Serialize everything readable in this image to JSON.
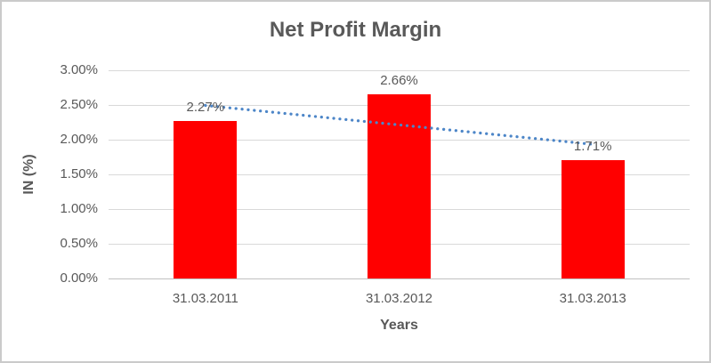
{
  "chart_data": {
    "type": "bar",
    "title": "Net Profit Margin",
    "xlabel": "Years",
    "ylabel": "IN (%)",
    "categories": [
      "31.03.2011",
      "31.03.2012",
      "31.03.2013"
    ],
    "values": [
      2.27,
      2.66,
      1.71
    ],
    "value_labels": [
      "2.27%",
      "2.66%",
      "1.71%"
    ],
    "ylim": [
      0,
      3
    ],
    "yticks": [
      {
        "value": 0.0,
        "label": "0.00%"
      },
      {
        "value": 0.5,
        "label": "0.50%"
      },
      {
        "value": 1.0,
        "label": "1.00%"
      },
      {
        "value": 1.5,
        "label": "1.50%"
      },
      {
        "value": 2.0,
        "label": "2.00%"
      },
      {
        "value": 2.5,
        "label": "2.50%"
      },
      {
        "value": 3.0,
        "label": "3.00%"
      }
    ],
    "grid": true,
    "legend": "none",
    "bar_color": "#ff0000",
    "trendline": {
      "type": "linear",
      "style": "dotted",
      "color": "#4d86c8"
    },
    "gridline_color": "#d9d9d9",
    "text_color": "#595959"
  }
}
